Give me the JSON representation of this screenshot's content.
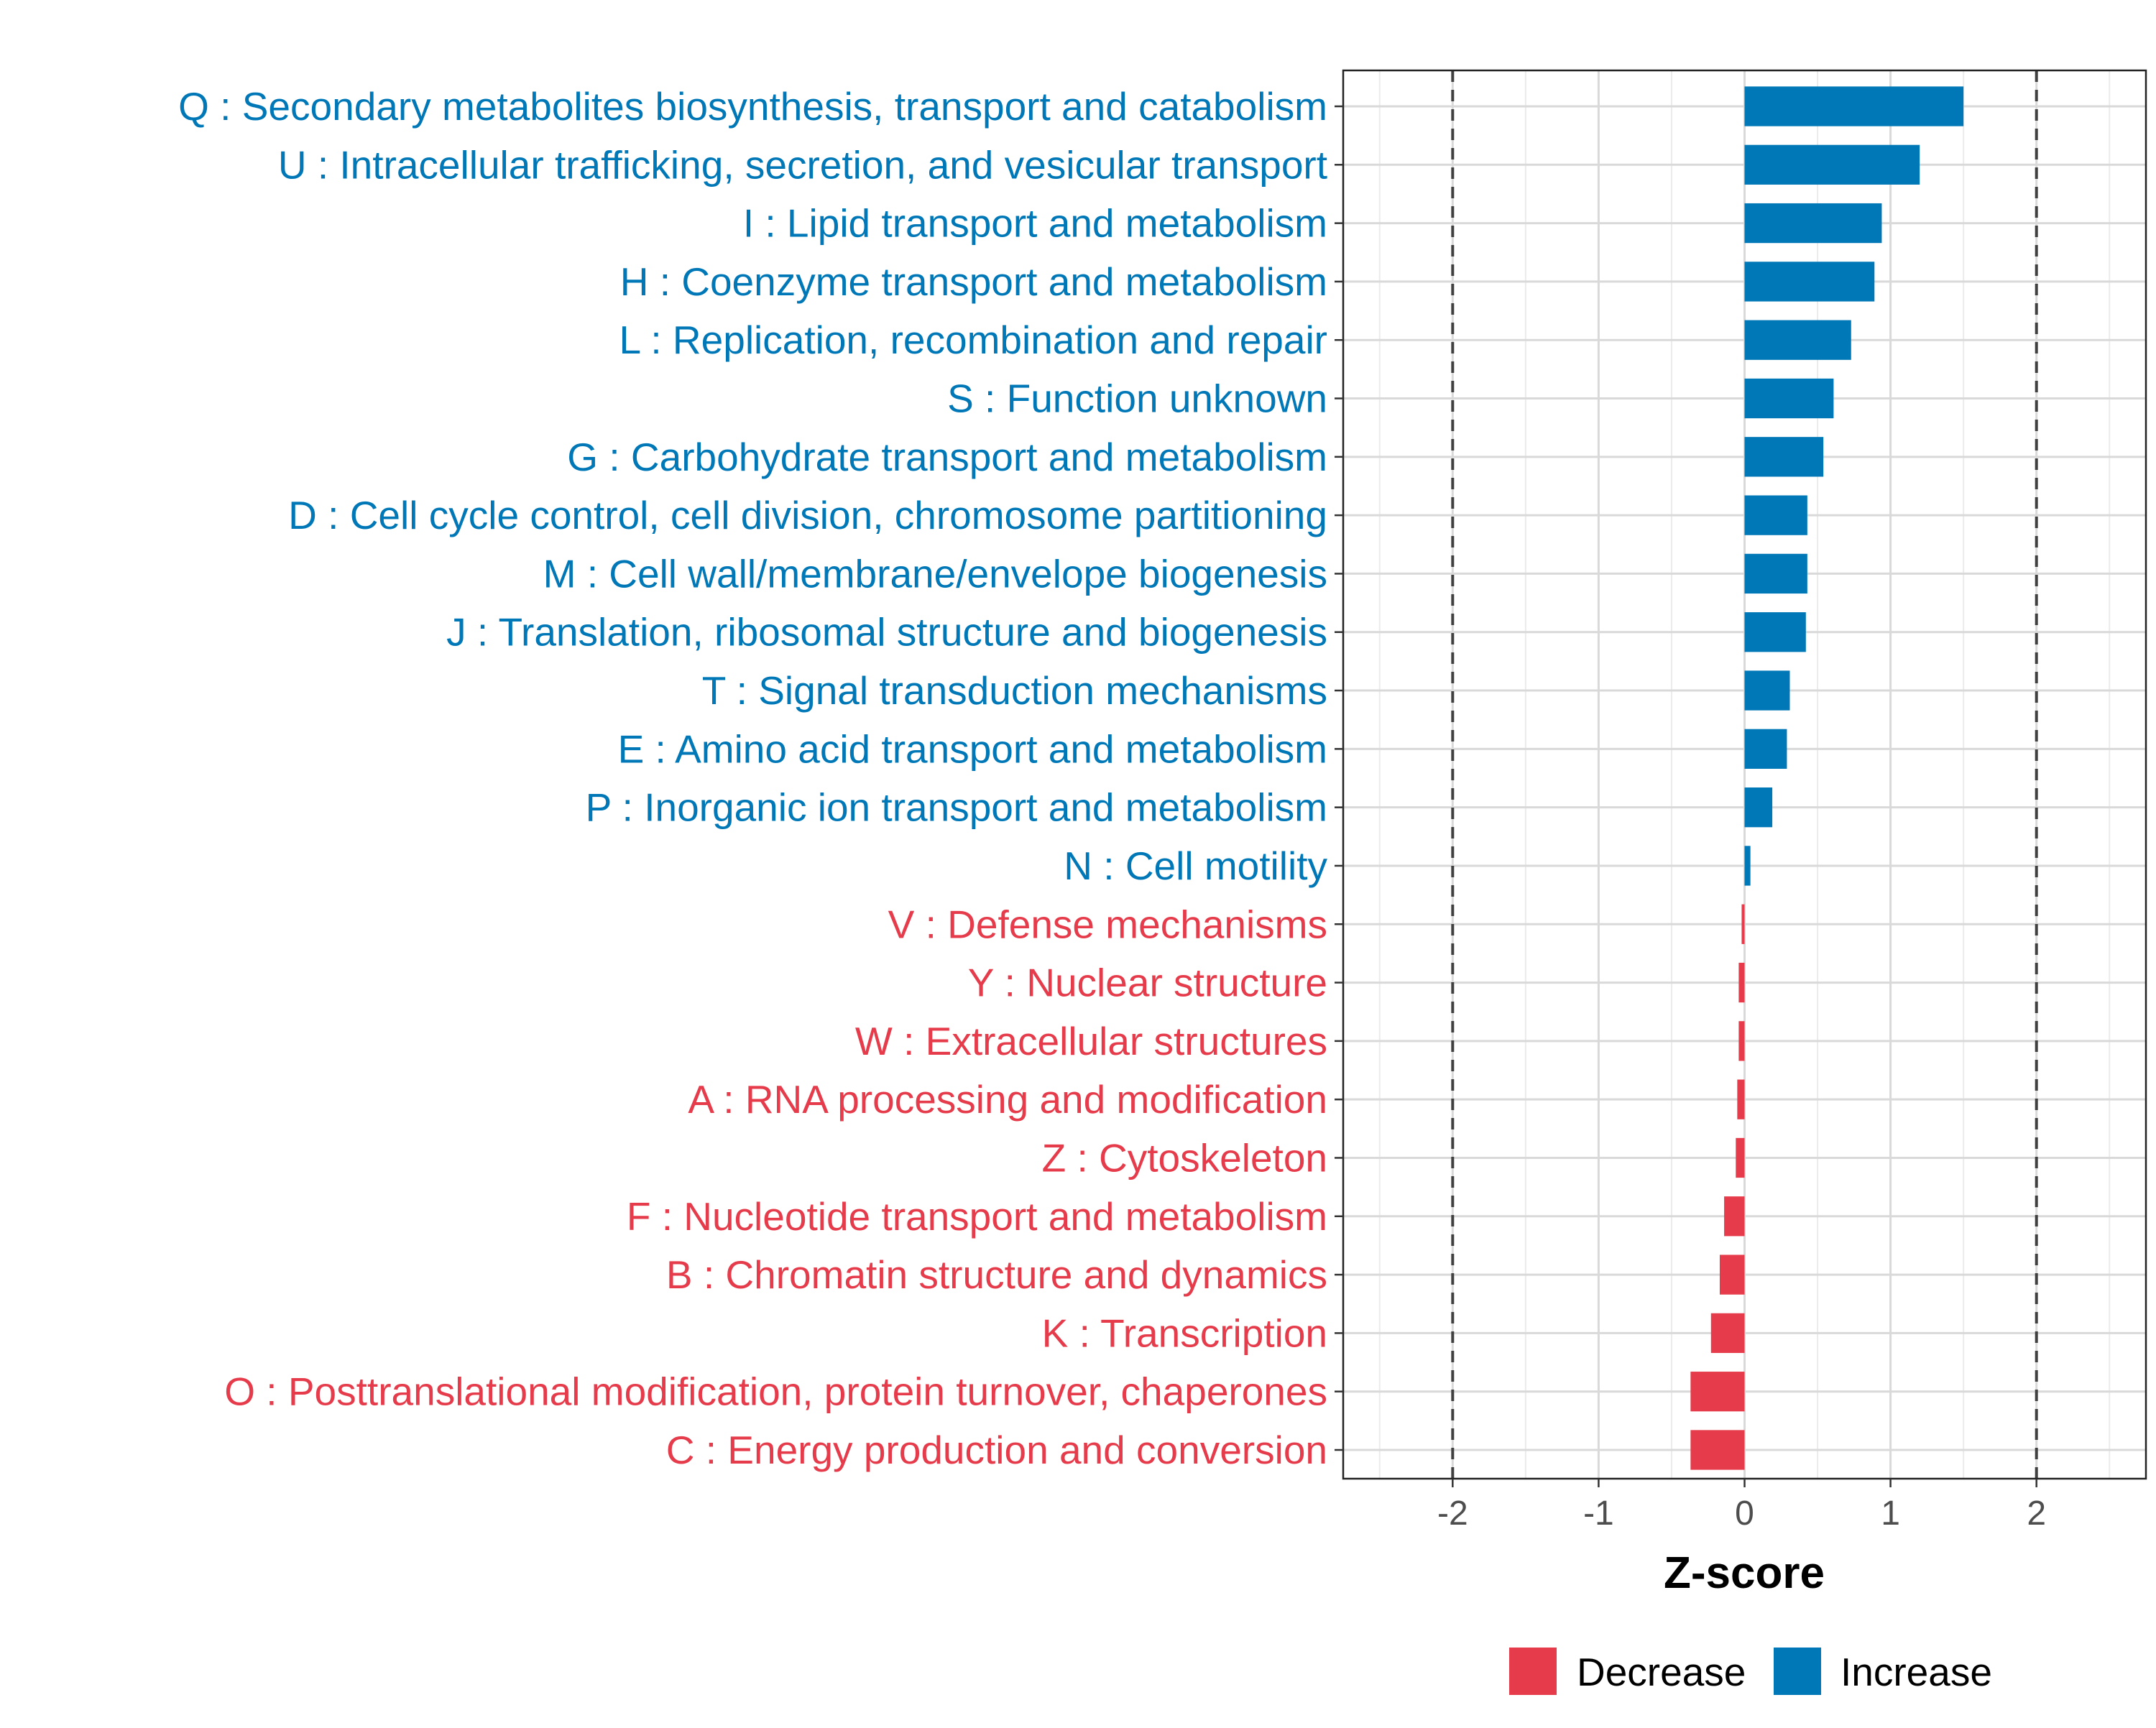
{
  "chart_data": {
    "type": "bar",
    "orientation": "horizontal",
    "xlabel": "Z-score",
    "ylabel": "",
    "xlim": [
      -2.75,
      2.75
    ],
    "xticks": [
      -2,
      -1,
      0,
      1,
      2
    ],
    "xtick_labels": [
      "-2",
      "-1",
      "0",
      "1",
      "2"
    ],
    "reference_lines": [
      -2,
      2
    ],
    "grid": true,
    "legend_position": "bottom",
    "colors": {
      "Decrease": "#e63b4a",
      "Increase": "#0077b6"
    },
    "legend": [
      {
        "label": "Decrease",
        "color": "#e63b4a"
      },
      {
        "label": "Increase",
        "color": "#0077b6"
      }
    ],
    "categories": [
      "Q : Secondary metabolites biosynthesis, transport and catabolism",
      "U : Intracellular trafficking, secretion, and vesicular transport",
      "I : Lipid transport and metabolism",
      "H : Coenzyme transport and metabolism",
      "L : Replication, recombination and repair",
      "S : Function unknown",
      "G : Carbohydrate transport and metabolism",
      "D : Cell cycle control, cell division, chromosome partitioning",
      "M : Cell wall/membrane/envelope biogenesis",
      "J : Translation, ribosomal structure and biogenesis",
      "T : Signal transduction mechanisms",
      "E : Amino acid transport and metabolism",
      "P : Inorganic ion transport and metabolism",
      "N : Cell motility",
      "V : Defense mechanisms",
      "Y : Nuclear structure",
      "W : Extracellular structures",
      "A : RNA processing and modification",
      "Z : Cytoskeleton",
      "F : Nucleotide transport and metabolism",
      "B : Chromatin structure and dynamics",
      "K : Transcription",
      "O : Posttranslational modification, protein turnover, chaperones",
      "C : Energy production and conversion"
    ],
    "values": [
      1.5,
      1.2,
      0.94,
      0.89,
      0.73,
      0.61,
      0.54,
      0.43,
      0.43,
      0.42,
      0.31,
      0.29,
      0.19,
      0.04,
      -0.02,
      -0.04,
      -0.04,
      -0.05,
      -0.06,
      -0.14,
      -0.17,
      -0.23,
      -0.37,
      -0.37
    ],
    "groups": [
      "Increase",
      "Increase",
      "Increase",
      "Increase",
      "Increase",
      "Increase",
      "Increase",
      "Increase",
      "Increase",
      "Increase",
      "Increase",
      "Increase",
      "Increase",
      "Increase",
      "Decrease",
      "Decrease",
      "Decrease",
      "Decrease",
      "Decrease",
      "Decrease",
      "Decrease",
      "Decrease",
      "Decrease",
      "Decrease"
    ]
  }
}
